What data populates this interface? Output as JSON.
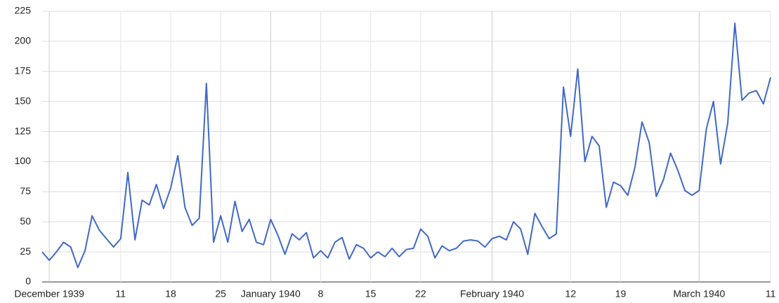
{
  "chart_data": {
    "type": "line",
    "x": [
      "1939-11-30",
      "1939-12-01",
      "1939-12-02",
      "1939-12-03",
      "1939-12-04",
      "1939-12-05",
      "1939-12-06",
      "1939-12-07",
      "1939-12-08",
      "1939-12-09",
      "1939-12-10",
      "1939-12-11",
      "1939-12-12",
      "1939-12-13",
      "1939-12-14",
      "1939-12-15",
      "1939-12-16",
      "1939-12-17",
      "1939-12-18",
      "1939-12-19",
      "1939-12-20",
      "1939-12-21",
      "1939-12-22",
      "1939-12-23",
      "1939-12-24",
      "1939-12-25",
      "1939-12-26",
      "1939-12-27",
      "1939-12-28",
      "1939-12-29",
      "1939-12-30",
      "1939-12-31",
      "1940-01-01",
      "1940-01-02",
      "1940-01-03",
      "1940-01-04",
      "1940-01-05",
      "1940-01-06",
      "1940-01-07",
      "1940-01-08",
      "1940-01-09",
      "1940-01-10",
      "1940-01-11",
      "1940-01-12",
      "1940-01-13",
      "1940-01-14",
      "1940-01-15",
      "1940-01-16",
      "1940-01-17",
      "1940-01-18",
      "1940-01-19",
      "1940-01-20",
      "1940-01-21",
      "1940-01-22",
      "1940-01-23",
      "1940-01-24",
      "1940-01-25",
      "1940-01-26",
      "1940-01-27",
      "1940-01-28",
      "1940-01-29",
      "1940-01-30",
      "1940-01-31",
      "1940-02-01",
      "1940-02-02",
      "1940-02-03",
      "1940-02-04",
      "1940-02-05",
      "1940-02-06",
      "1940-02-07",
      "1940-02-08",
      "1940-02-09",
      "1940-02-10",
      "1940-02-11",
      "1940-02-12",
      "1940-02-13",
      "1940-02-14",
      "1940-02-15",
      "1940-02-16",
      "1940-02-17",
      "1940-02-18",
      "1940-02-19",
      "1940-02-20",
      "1940-02-21",
      "1940-02-22",
      "1940-02-23",
      "1940-02-24",
      "1940-02-25",
      "1940-02-26",
      "1940-02-27",
      "1940-02-28",
      "1940-02-29",
      "1940-03-01",
      "1940-03-02",
      "1940-03-03",
      "1940-03-04",
      "1940-03-05",
      "1940-03-06",
      "1940-03-07",
      "1940-03-08",
      "1940-03-09",
      "1940-03-10",
      "1940-03-11"
    ],
    "series": [
      {
        "color": "#4169c6",
        "values": [
          25,
          18,
          25,
          33,
          29,
          12,
          26,
          55,
          43,
          36,
          29,
          36,
          91,
          35,
          68,
          64,
          81,
          61,
          78,
          105,
          62,
          47,
          53,
          165,
          33,
          55,
          33,
          67,
          42,
          52,
          33,
          31,
          52,
          39,
          23,
          40,
          35,
          41,
          20,
          26,
          20,
          33,
          37,
          19,
          31,
          28,
          20,
          25,
          21,
          28,
          21,
          27,
          28,
          44,
          38,
          20,
          30,
          26,
          28,
          34,
          35,
          34,
          29,
          36,
          38,
          35,
          50,
          44,
          23,
          57,
          46,
          36,
          40,
          162,
          121,
          177,
          100,
          121,
          113,
          62,
          83,
          80,
          72,
          95,
          133,
          116,
          71,
          85,
          107,
          93,
          76,
          72,
          76,
          127,
          150,
          98,
          132,
          215,
          151,
          157,
          159,
          148,
          170
        ]
      }
    ],
    "xlim": [
      "1939-11-30",
      "1940-03-11"
    ],
    "xticks": [
      {
        "value": "1939-12-01",
        "label": "December 1939"
      },
      {
        "value": "1939-12-11",
        "label": "11"
      },
      {
        "value": "1939-12-18",
        "label": "18"
      },
      {
        "value": "1939-12-25",
        "label": "25"
      },
      {
        "value": "1940-01-01",
        "label": "January 1940"
      },
      {
        "value": "1940-01-08",
        "label": "8"
      },
      {
        "value": "1940-01-15",
        "label": "15"
      },
      {
        "value": "1940-01-22",
        "label": "22"
      },
      {
        "value": "1940-02-01",
        "label": "February 1940"
      },
      {
        "value": "1940-02-12",
        "label": "12"
      },
      {
        "value": "1940-02-19",
        "label": "19"
      },
      {
        "value": "1940-03-01",
        "label": "March 1940"
      },
      {
        "value": "1940-03-11",
        "label": "11"
      }
    ],
    "ylim": [
      0,
      225
    ],
    "yticks": [
      0,
      25,
      50,
      75,
      100,
      125,
      150,
      175,
      200,
      225
    ],
    "grid": true
  }
}
